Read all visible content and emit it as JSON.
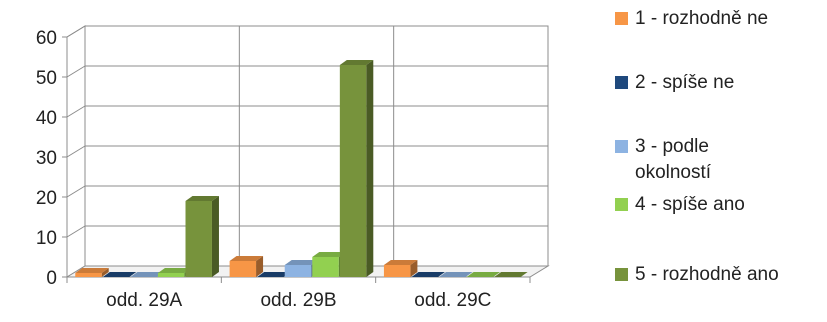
{
  "chart_data": {
    "type": "bar",
    "title": "",
    "xlabel": "",
    "ylabel": "",
    "ylim": [
      0,
      60
    ],
    "yticks": [
      0,
      10,
      20,
      30,
      40,
      50,
      60
    ],
    "grid": true,
    "three_d": true,
    "legend_position": "right",
    "categories": [
      "odd. 29A",
      "odd. 29B",
      "odd. 29C"
    ],
    "series": [
      {
        "name": "1 - rozhodně ne",
        "color": "#F79646",
        "values": [
          1,
          4,
          3
        ]
      },
      {
        "name": "2 - spíše ne",
        "color": "#1F497D",
        "values": [
          0,
          0,
          0
        ]
      },
      {
        "name": "3 - podle okolností",
        "color": "#8DB3E2",
        "values": [
          0,
          3,
          0
        ]
      },
      {
        "name": "4 - spíše ano",
        "color": "#92D050",
        "values": [
          1,
          5,
          0
        ]
      },
      {
        "name": "5 - rozhodně ano",
        "color": "#77933C",
        "values": [
          19,
          53,
          0
        ]
      }
    ]
  }
}
